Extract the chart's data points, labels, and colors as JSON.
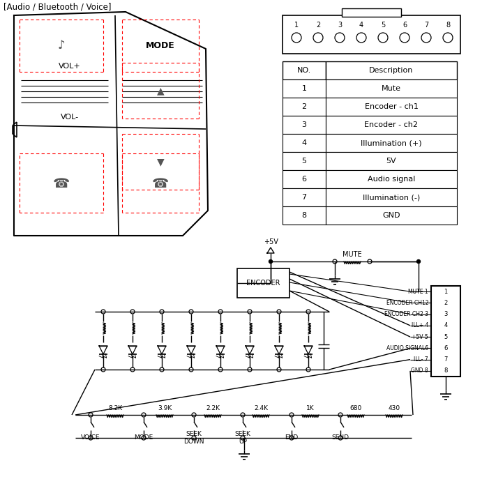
{
  "title": "[Audio / Bluetooth / Voice]",
  "bg_color": "#ffffff",
  "table_rows": [
    [
      "1",
      "Mute"
    ],
    [
      "2",
      "Encoder - ch1"
    ],
    [
      "3",
      "Encoder - ch2"
    ],
    [
      "4",
      "Illumination (+)"
    ],
    [
      "5",
      "5V"
    ],
    [
      "6",
      "Audio signal"
    ],
    [
      "7",
      "Illumination (-)"
    ],
    [
      "8",
      "GND"
    ]
  ],
  "connector_labels": [
    "1",
    "2",
    "3",
    "4",
    "5",
    "6",
    "7",
    "8"
  ],
  "pin_labels": [
    "MUTE 1",
    "ENCODER CH12",
    "ENCODER CH2 3",
    "ILL+ 4",
    "+5V 5",
    "AUDIO SIGNAL6",
    "ILL- 7",
    "GND 8"
  ],
  "pin_numbers": [
    "1",
    "2",
    "3",
    "4",
    "5",
    "6",
    "7",
    "8"
  ],
  "resistor_values": [
    "8.2K",
    "3.9K",
    "2.2K",
    "2.4K",
    "1K",
    "680",
    "430"
  ],
  "switch_labels": [
    "VOICE",
    "MODE",
    "SEEK\nDOWN",
    "SEEK\nUP",
    "END",
    "SEND"
  ],
  "text_color": "#000000",
  "line_color": "#000000"
}
